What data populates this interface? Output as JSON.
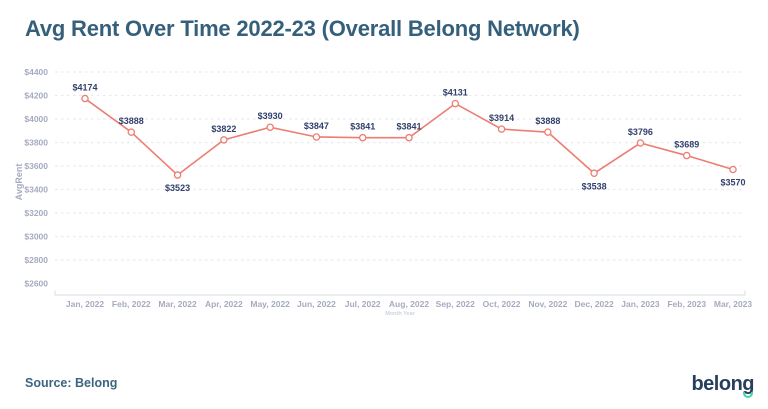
{
  "header": {
    "title": "Avg Rent Over Time 2022-23 (Overall Belong Network)"
  },
  "footer": {
    "source_label": "Source: Belong",
    "logo_text": "belong"
  },
  "colors": {
    "title": "#35607c",
    "line": "#ed7d72",
    "marker_fill": "#ffffff",
    "data_label": "#33406b",
    "tick_label": "#a5abc0",
    "gridline": "#e8eaf0",
    "axis_line": "#d9dbe1",
    "source_text": "#3c647f",
    "logo_navy": "#273f5f",
    "logo_green": "#3fd7a2"
  },
  "chart_data": {
    "type": "line",
    "title": "Avg Rent Over Time 2022-23 (Overall Belong Network)",
    "categories": [
      "Jan, 2022",
      "Feb, 2022",
      "Mar, 2022",
      "Apr, 2022",
      "May, 2022",
      "Jun, 2022",
      "Jul, 2022",
      "Aug, 2022",
      "Sep, 2022",
      "Oct, 2022",
      "Nov, 2022",
      "Dec, 2022",
      "Jan, 2023",
      "Feb, 2023",
      "Mar, 2023"
    ],
    "series": [
      {
        "name": "AvgRent",
        "values": [
          4174,
          3888,
          3523,
          3822,
          3930,
          3847,
          3841,
          3841,
          4131,
          3914,
          3888,
          3538,
          3796,
          3689,
          3570
        ]
      }
    ],
    "data_labels": [
      "$4174",
      "$3888",
      "$3523",
      "$3822",
      "$3930",
      "$3847",
      "$3841",
      "$3841",
      "$4131",
      "$3914",
      "$3888",
      "$3538",
      "$3796",
      "$3689",
      "$3570"
    ],
    "label_below_indices": [
      2,
      11,
      14
    ],
    "ylabel": "AvgRent",
    "xlabel": "Month Year",
    "ylim": [
      2600,
      4400
    ],
    "yticks": [
      2600,
      2800,
      3000,
      3200,
      3400,
      3600,
      3800,
      4000,
      4200,
      4400
    ],
    "ytick_prefix": "$",
    "grid": "dashed-horizontal",
    "legend_position": "none",
    "line_color": "#ed7d72",
    "marker": "open-circle"
  }
}
